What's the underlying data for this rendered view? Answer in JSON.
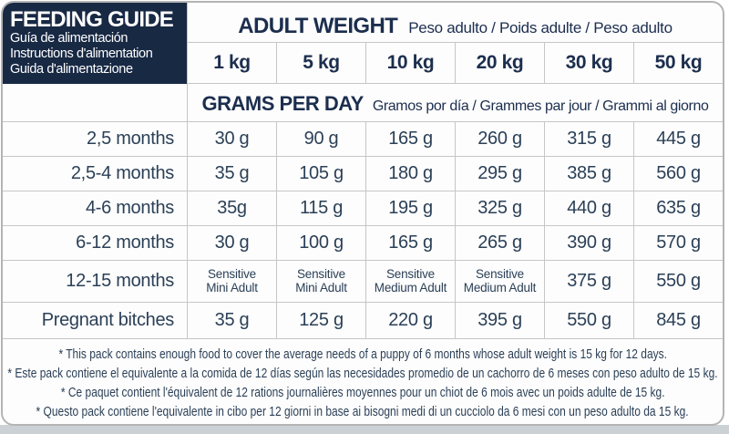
{
  "colors": {
    "navy": "#182944",
    "heading": "#1c2e4e",
    "text": "#2b4057",
    "border": "#c6c6c6"
  },
  "left_header": {
    "title": "FEEDING GUIDE",
    "subtitle_es": "Guía de alimentación",
    "subtitle_fr": "Instructions d'alimentation",
    "subtitle_it": "Guida d'alimentazione"
  },
  "adult_weight_header": {
    "title": "ADULT WEIGHT",
    "subtitle": "Peso adulto / Poids adulte / Peso adulto"
  },
  "weights": [
    "1 kg",
    "5 kg",
    "10 kg",
    "20 kg",
    "30 kg",
    "50 kg"
  ],
  "grams_header": {
    "title": "GRAMS PER DAY",
    "subtitle": "Gramos por día / Grammes par jour / Grammi al giorno"
  },
  "rows": [
    {
      "label": "2,5 months",
      "values": [
        "30 g",
        "90 g",
        "165 g",
        "260 g",
        "315 g",
        "445 g"
      ]
    },
    {
      "label": "2,5-4 months",
      "values": [
        "35 g",
        "105 g",
        "180 g",
        "295 g",
        "385 g",
        "560 g"
      ]
    },
    {
      "label": "4-6 months",
      "values": [
        "35g",
        "115 g",
        "195 g",
        "325 g",
        "440 g",
        "635 g"
      ]
    },
    {
      "label": "6-12 months",
      "values": [
        "30 g",
        "100 g",
        "165 g",
        "265 g",
        "390 g",
        "570 g"
      ]
    },
    {
      "label": "12-15 months",
      "values": [
        "Sensitive\nMini Adult",
        "Sensitive\nMini Adult",
        "Sensitive\nMedium Adult",
        "Sensitive\nMedium Adult",
        "375 g",
        "550 g"
      ]
    },
    {
      "label": "Pregnant bitches",
      "values": [
        "35 g",
        "125 g",
        "220 g",
        "395 g",
        "550 g",
        "845 g"
      ]
    }
  ],
  "footnotes": [
    "* This pack contains enough food to cover the average needs of a puppy of 6 months whose adult weight is 15 kg for 12 days.",
    "* Este pack contiene el equivalente a la comida de 12 días según las necesidades promedio de un cachorro de 6 meses con peso adulto de 15 kg.",
    "* Ce paquet contient l'équivalent de 12 rations journalières moyennes pour un chiot de 6 mois avec un poids adulte de 15 kg.",
    "* Questo pack contiene l'equivalente in cibo per 12 giorni in base ai bisogni medi di un cucciolo da 6 mesi con un peso adulto da 15 kg."
  ]
}
